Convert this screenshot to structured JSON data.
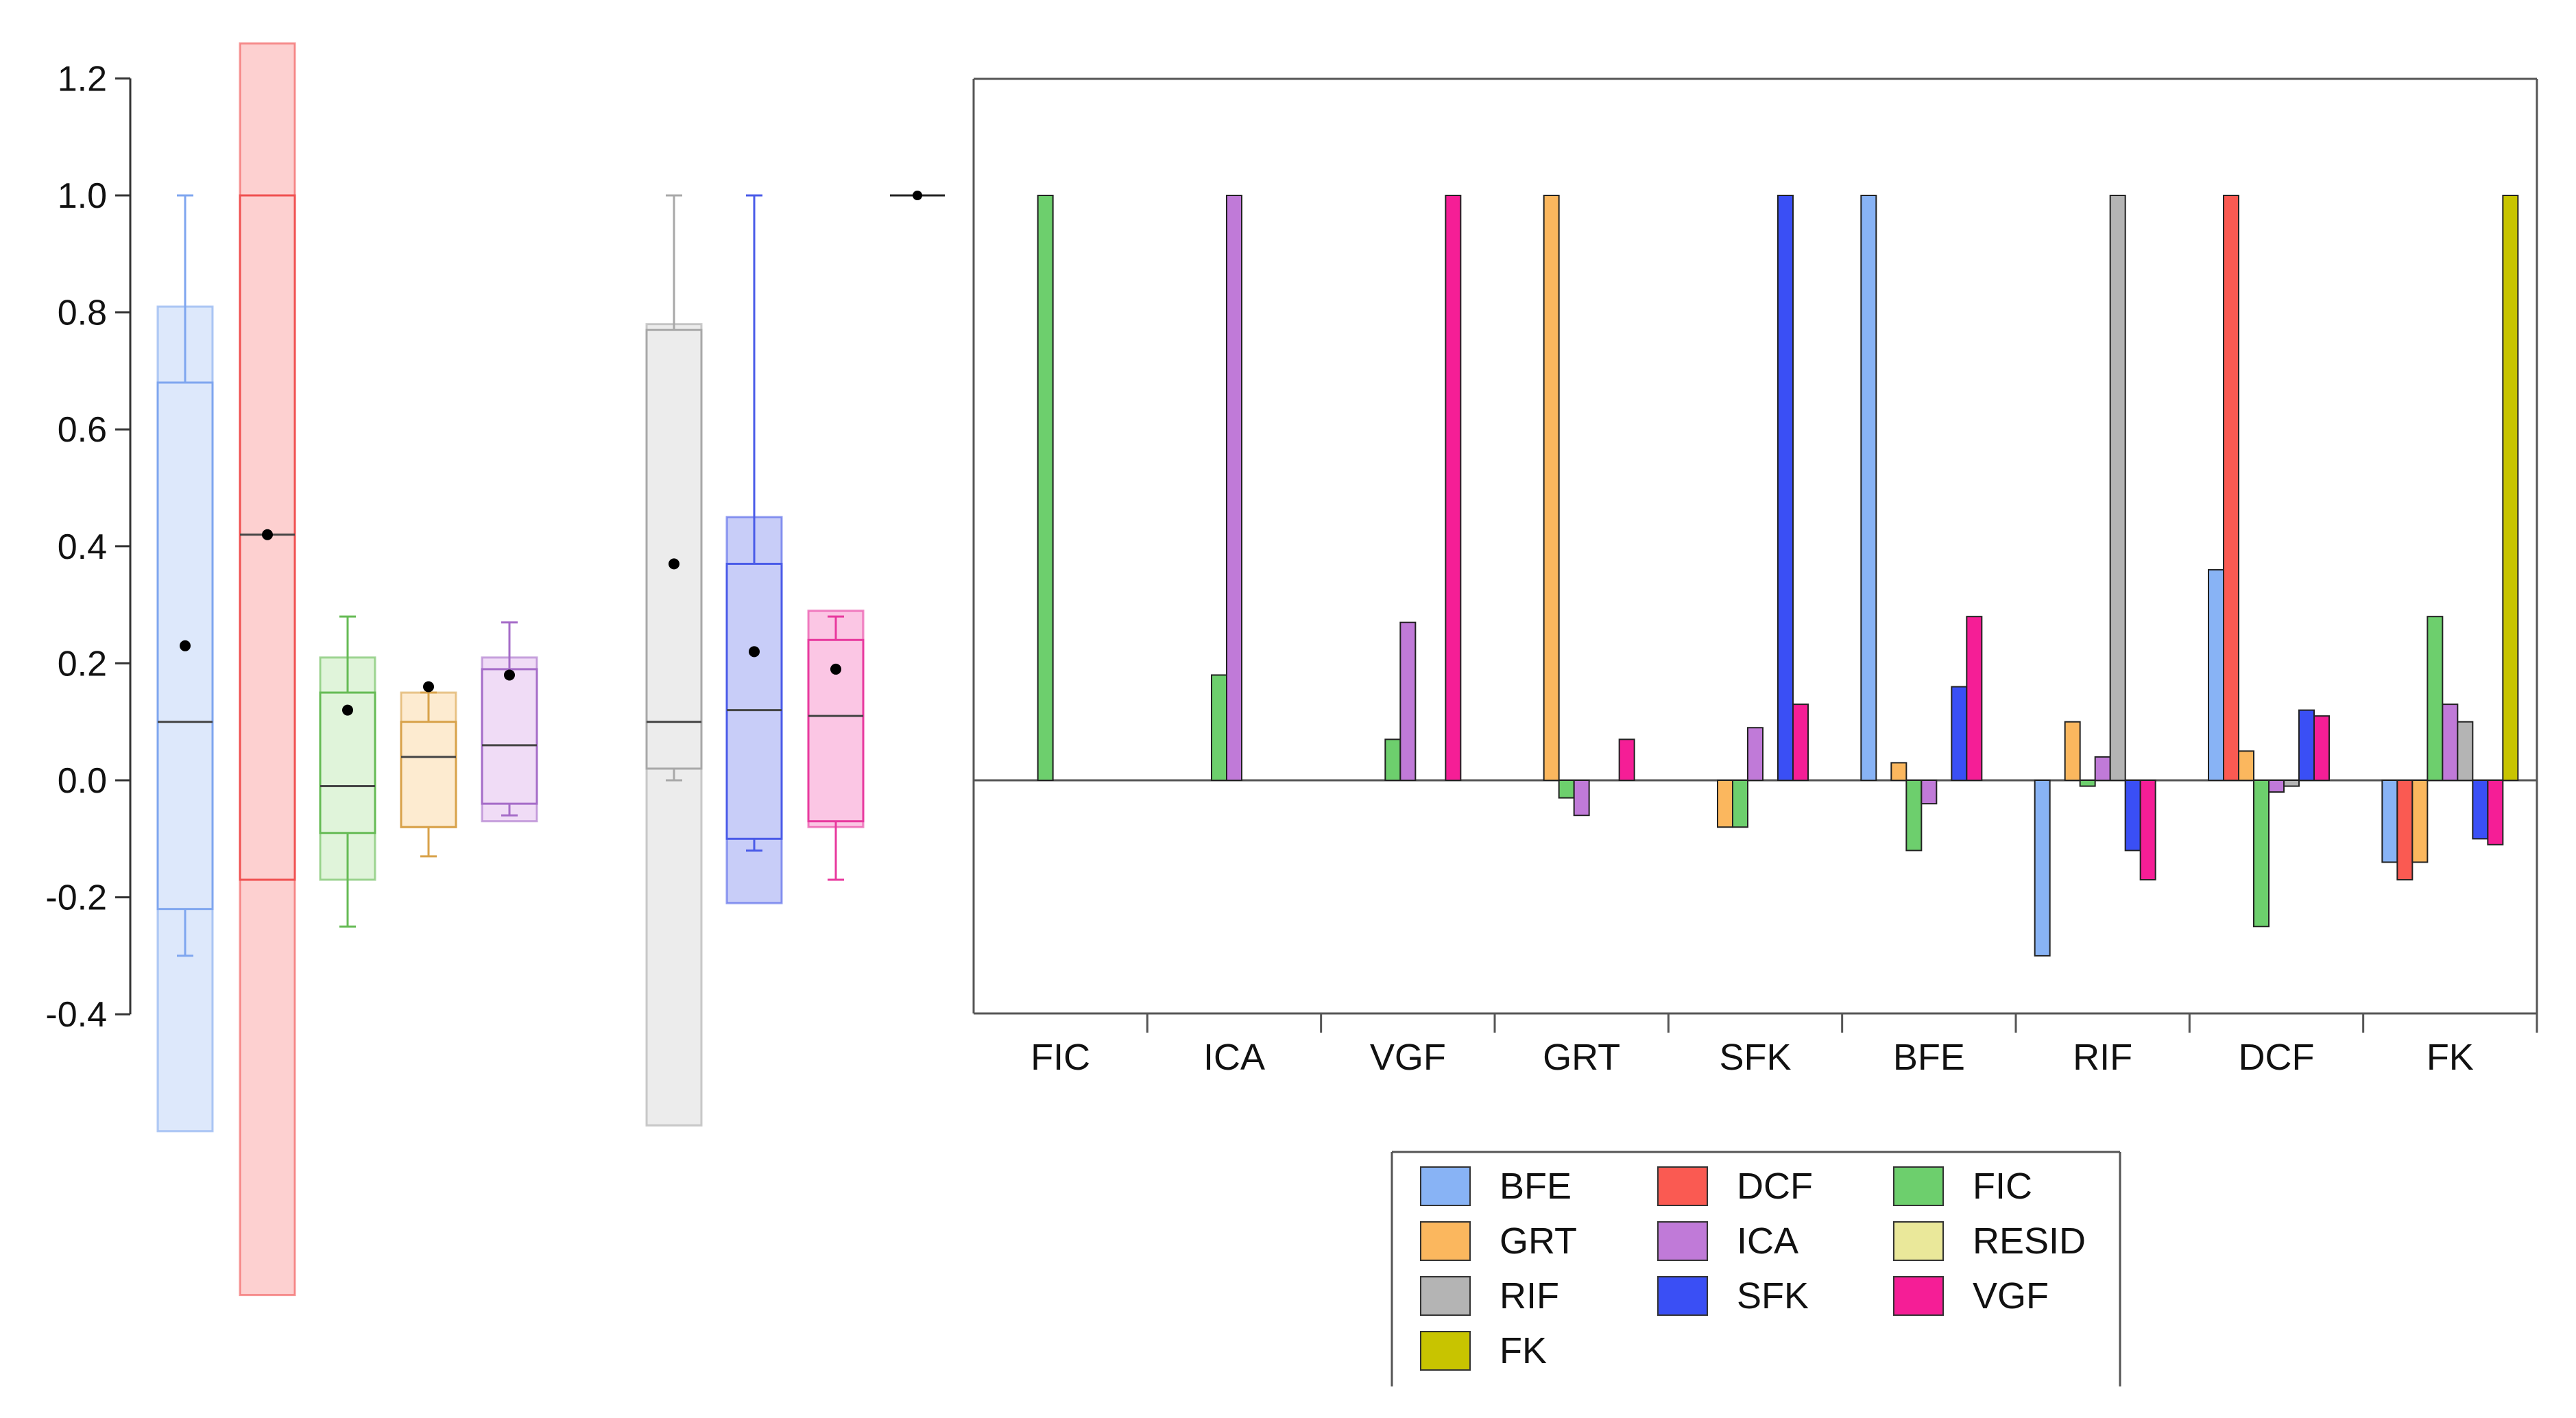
{
  "chart_data": [
    {
      "type": "box",
      "title": "",
      "y_tick_labels": [
        "1.2",
        "1.0",
        "0.8",
        "0.6",
        "0.4",
        "0.2",
        "0.0",
        "-0.2",
        "-0.4"
      ],
      "ylim": [
        -0.4,
        1.2
      ],
      "boxes": [
        {
          "name": "BFE",
          "color": "#7fa6ef",
          "fill": "#dde8fb",
          "whisker_low": -0.3,
          "q1": -0.22,
          "median": 0.1,
          "q3": 0.68,
          "whisker_high": 1.0,
          "mean": 0.23,
          "ci_low": -0.6,
          "ci_high": 0.81
        },
        {
          "name": "DCF",
          "color": "#f05050",
          "fill": "#fdd0d0",
          "whisker_low": -0.17,
          "q1": -0.17,
          "median": 0.42,
          "q3": 1.0,
          "whisker_high": 1.0,
          "mean": 0.42,
          "ci_low": -0.88,
          "ci_high": 1.26
        },
        {
          "name": "FIC",
          "color": "#66bb55",
          "fill": "#e0f4da",
          "whisker_low": -0.25,
          "q1": -0.09,
          "median": -0.01,
          "q3": 0.15,
          "whisker_high": 0.28,
          "mean": 0.12,
          "ci_low": -0.17,
          "ci_high": 0.21
        },
        {
          "name": "GRT",
          "color": "#d8a24a",
          "fill": "#fdebd0",
          "whisker_low": -0.13,
          "q1": -0.08,
          "median": 0.04,
          "q3": 0.1,
          "whisker_high": 0.15,
          "mean": 0.16,
          "ci_low": -0.08,
          "ci_high": 0.15
        },
        {
          "name": "ICA",
          "color": "#a56cc8",
          "fill": "#f0dcf6",
          "whisker_low": -0.06,
          "q1": -0.04,
          "median": 0.06,
          "q3": 0.19,
          "whisker_high": 0.27,
          "mean": 0.18,
          "ci_low": -0.07,
          "ci_high": 0.21
        },
        {
          "name": "RIF",
          "color": "#a8a8a8",
          "fill": "#ececec",
          "whisker_low": 0.0,
          "q1": 0.02,
          "median": 0.1,
          "q3": 0.77,
          "whisker_high": 1.0,
          "mean": 0.37,
          "ci_low": -0.59,
          "ci_high": 0.78
        },
        {
          "name": "SFK",
          "color": "#4a5be8",
          "fill": "#c8cdf8",
          "whisker_low": -0.12,
          "q1": -0.1,
          "median": 0.12,
          "q3": 0.37,
          "whisker_high": 1.0,
          "mean": 0.22,
          "ci_low": -0.21,
          "ci_high": 0.45
        },
        {
          "name": "VGF",
          "color": "#e8399e",
          "fill": "#fbc6e4",
          "whisker_low": -0.17,
          "q1": -0.07,
          "median": 0.11,
          "q3": 0.24,
          "whisker_high": 0.28,
          "mean": 0.19,
          "ci_low": -0.08,
          "ci_high": 0.29
        },
        {
          "name": "FK",
          "color": "#222222",
          "fill": "#ffffff",
          "whisker_low": 1.0,
          "q1": 1.0,
          "median": 1.0,
          "q3": 1.0,
          "whisker_high": 1.0,
          "mean": 1.0,
          "ci_low": 1.0,
          "ci_high": 1.0
        }
      ]
    },
    {
      "type": "bar",
      "title": "",
      "categories": [
        "FIC",
        "ICA",
        "VGF",
        "GRT",
        "SFK",
        "BFE",
        "RIF",
        "DCF",
        "FK"
      ],
      "ylim": [
        -0.4,
        1.2
      ],
      "series": [
        {
          "name": "BFE",
          "color": "#88b3f5",
          "values": [
            0,
            0,
            0,
            0,
            0,
            1.0,
            -0.3,
            0.36,
            -0.14
          ]
        },
        {
          "name": "DCF",
          "color": "#fa5a52",
          "values": [
            0,
            0,
            0,
            0,
            0,
            0,
            0,
            1.0,
            -0.17
          ]
        },
        {
          "name": "GRT",
          "color": "#fbb75e",
          "values": [
            0,
            0,
            0,
            1.0,
            -0.08,
            0.03,
            0.1,
            0.05,
            -0.14
          ]
        },
        {
          "name": "FIC",
          "color": "#6dcf6d",
          "values": [
            1.0,
            0.18,
            0.07,
            -0.03,
            -0.08,
            -0.12,
            -0.01,
            -0.25,
            0.28
          ]
        },
        {
          "name": "ICA",
          "color": "#c07ad8",
          "values": [
            0,
            1.0,
            0.27,
            -0.06,
            0.09,
            -0.04,
            0.04,
            -0.02,
            0.13
          ]
        },
        {
          "name": "RIF",
          "color": "#b4b4b4",
          "values": [
            0,
            0,
            0,
            0,
            0,
            0,
            1.0,
            -0.01,
            0.1
          ]
        },
        {
          "name": "SFK",
          "color": "#3a4ff5",
          "values": [
            0,
            0,
            0,
            0,
            1.0,
            0.16,
            -0.12,
            0.12,
            -0.1
          ]
        },
        {
          "name": "VGF",
          "color": "#f51e96",
          "values": [
            0,
            0,
            1.0,
            0.07,
            0.13,
            0.28,
            -0.17,
            0.11,
            -0.11
          ]
        },
        {
          "name": "FK",
          "color": "#c8c400",
          "values": [
            0,
            0,
            0,
            0,
            0,
            0,
            0,
            0,
            1.0
          ]
        }
      ],
      "legend": {
        "placement": "bottom",
        "entries": [
          {
            "label": "BFE",
            "color": "#88b3f5"
          },
          {
            "label": "DCF",
            "color": "#fa5a52"
          },
          {
            "label": "FIC",
            "color": "#6dcf6d"
          },
          {
            "label": "GRT",
            "color": "#fbb75e"
          },
          {
            "label": "ICA",
            "color": "#c07ad8"
          },
          {
            "label": "RESID",
            "color": "#eae89a"
          },
          {
            "label": "RIF",
            "color": "#b4b4b4"
          },
          {
            "label": "SFK",
            "color": "#3a4ff5"
          },
          {
            "label": "VGF",
            "color": "#f51e96"
          },
          {
            "label": "FK",
            "color": "#c8c400"
          }
        ]
      }
    }
  ]
}
